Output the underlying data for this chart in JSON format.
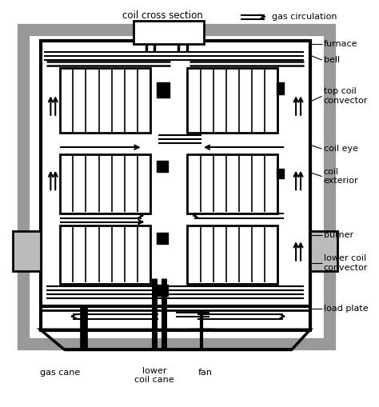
{
  "fig_w": 4.74,
  "fig_h": 5.09,
  "dpi": 100,
  "bg": "#ffffff",
  "lc": "#000000",
  "gray": "#999999",
  "lgray": "#bbbbbb",
  "title_top": "coil cross section",
  "label_gas_circ": "gas circulation",
  "label_furnace": "furnace",
  "label_bell": "bell",
  "label_top_coil": "top coil\nconvector",
  "label_coil_eye": "coil eye",
  "label_coil_ext": "coil\nexterior",
  "label_burner": "burner",
  "label_lower_coil": "lower coil\nconvector",
  "label_load_plate": "load plate",
  "label_gas_cane": "gas cane",
  "label_lcc": "lower\ncoil cane",
  "label_fan": "fan",
  "fs": 8.0
}
